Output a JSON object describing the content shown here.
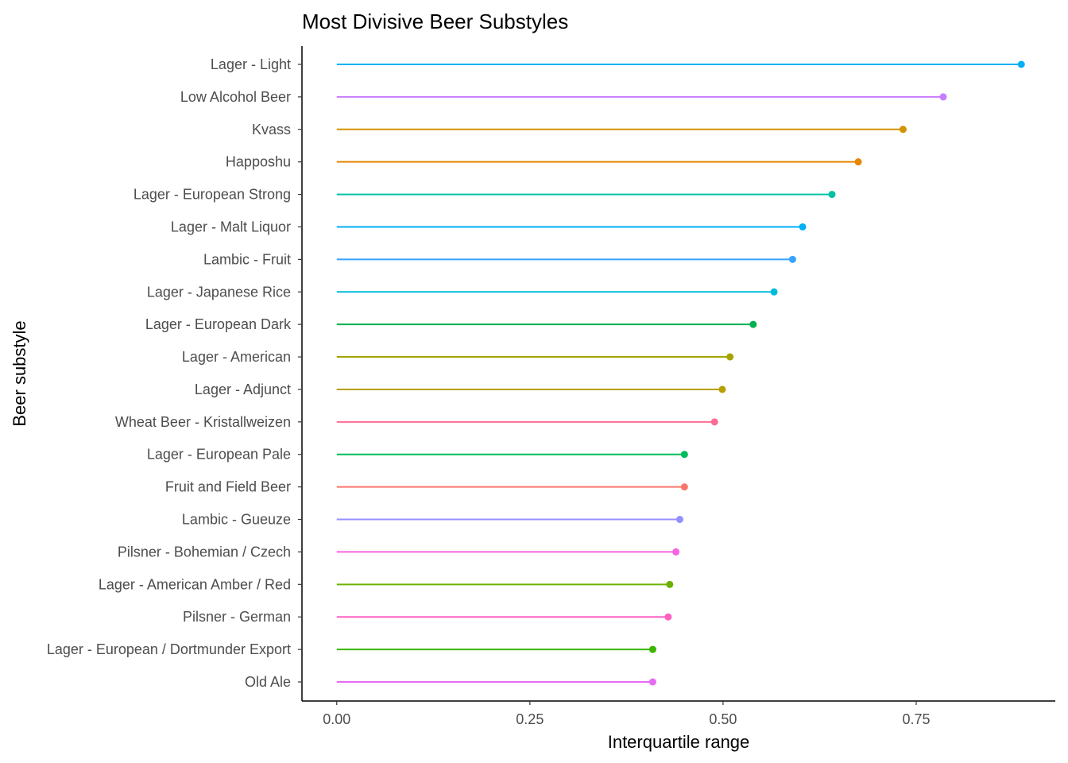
{
  "chart_data": {
    "type": "lollipop",
    "title": "Most Divisive Beer Substyles",
    "xlabel": "Interquartile range",
    "ylabel": "Beer substyle",
    "xlim": [
      -0.045,
      0.93
    ],
    "xticks": [
      0.0,
      0.25,
      0.5,
      0.75
    ],
    "xtick_labels": [
      "0.00",
      "0.25",
      "0.50",
      "0.75"
    ],
    "grid": false,
    "legend": "none",
    "categories": [
      "Lager - Light",
      "Low Alcohol Beer",
      "Kvass",
      "Happoshu",
      "Lager - European Strong",
      "Lager - Malt Liquor",
      "Lambic - Fruit",
      "Lager - Japanese Rice",
      "Lager - European Dark",
      "Lager - American",
      "Lager - Adjunct",
      "Wheat Beer - Kristallweizen",
      "Lager - European Pale",
      "Fruit and Field Beer",
      "Lambic - Gueuze",
      "Pilsner - Bohemian / Czech",
      "Lager - American Amber / Red",
      "Pilsner - German",
      "Lager - European / Dortmunder Export",
      "Old Ale"
    ],
    "values": [
      0.886,
      0.785,
      0.733,
      0.675,
      0.641,
      0.603,
      0.59,
      0.566,
      0.539,
      0.509,
      0.499,
      0.489,
      0.45,
      0.45,
      0.444,
      0.439,
      0.431,
      0.429,
      0.409,
      0.409
    ],
    "colors": [
      "#00B0F6",
      "#C77CFF",
      "#D39200",
      "#E58700",
      "#00BFA5",
      "#00B0F6",
      "#35A2FF",
      "#00BBDA",
      "#00B050",
      "#A3A500",
      "#B79F00",
      "#FF6C91",
      "#00BC59",
      "#F8766D",
      "#9590FF",
      "#F564E3",
      "#6BB100",
      "#FF61C3",
      "#39B600",
      "#E76BF3"
    ]
  }
}
